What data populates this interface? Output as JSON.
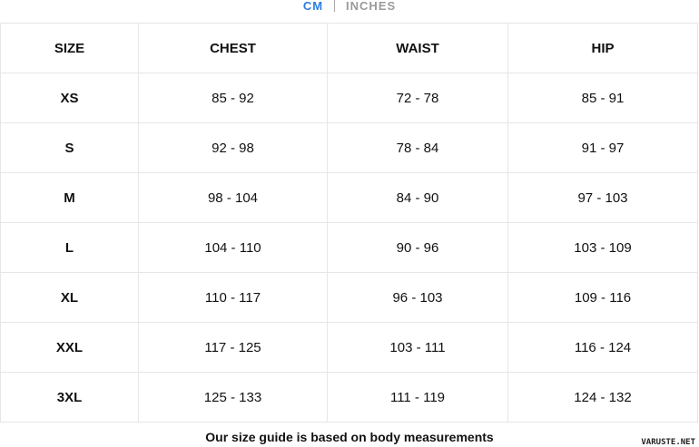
{
  "units": {
    "active": "CM",
    "inactive": "INCHES",
    "active_color": "#2a7de1"
  },
  "table": {
    "headers": [
      "SIZE",
      "CHEST",
      "WAIST",
      "HIP"
    ],
    "rows": [
      [
        "XS",
        "85 - 92",
        "72 - 78",
        "85 - 91"
      ],
      [
        "S",
        "92 - 98",
        "78 - 84",
        "91 - 97"
      ],
      [
        "M",
        "98 - 104",
        "84 - 90",
        "97 - 103"
      ],
      [
        "L",
        "104 - 110",
        "90 - 96",
        "103 - 109"
      ],
      [
        "XL",
        "110 - 117",
        "96 - 103",
        "109 - 116"
      ],
      [
        "XXL",
        "117 - 125",
        "103 - 111",
        "116 - 124"
      ],
      [
        "3XL",
        "125 - 133",
        "111 - 119",
        "124 - 132"
      ]
    ]
  },
  "note": "Our size guide is based on body measurements",
  "watermark": "VARUSTE.NET"
}
